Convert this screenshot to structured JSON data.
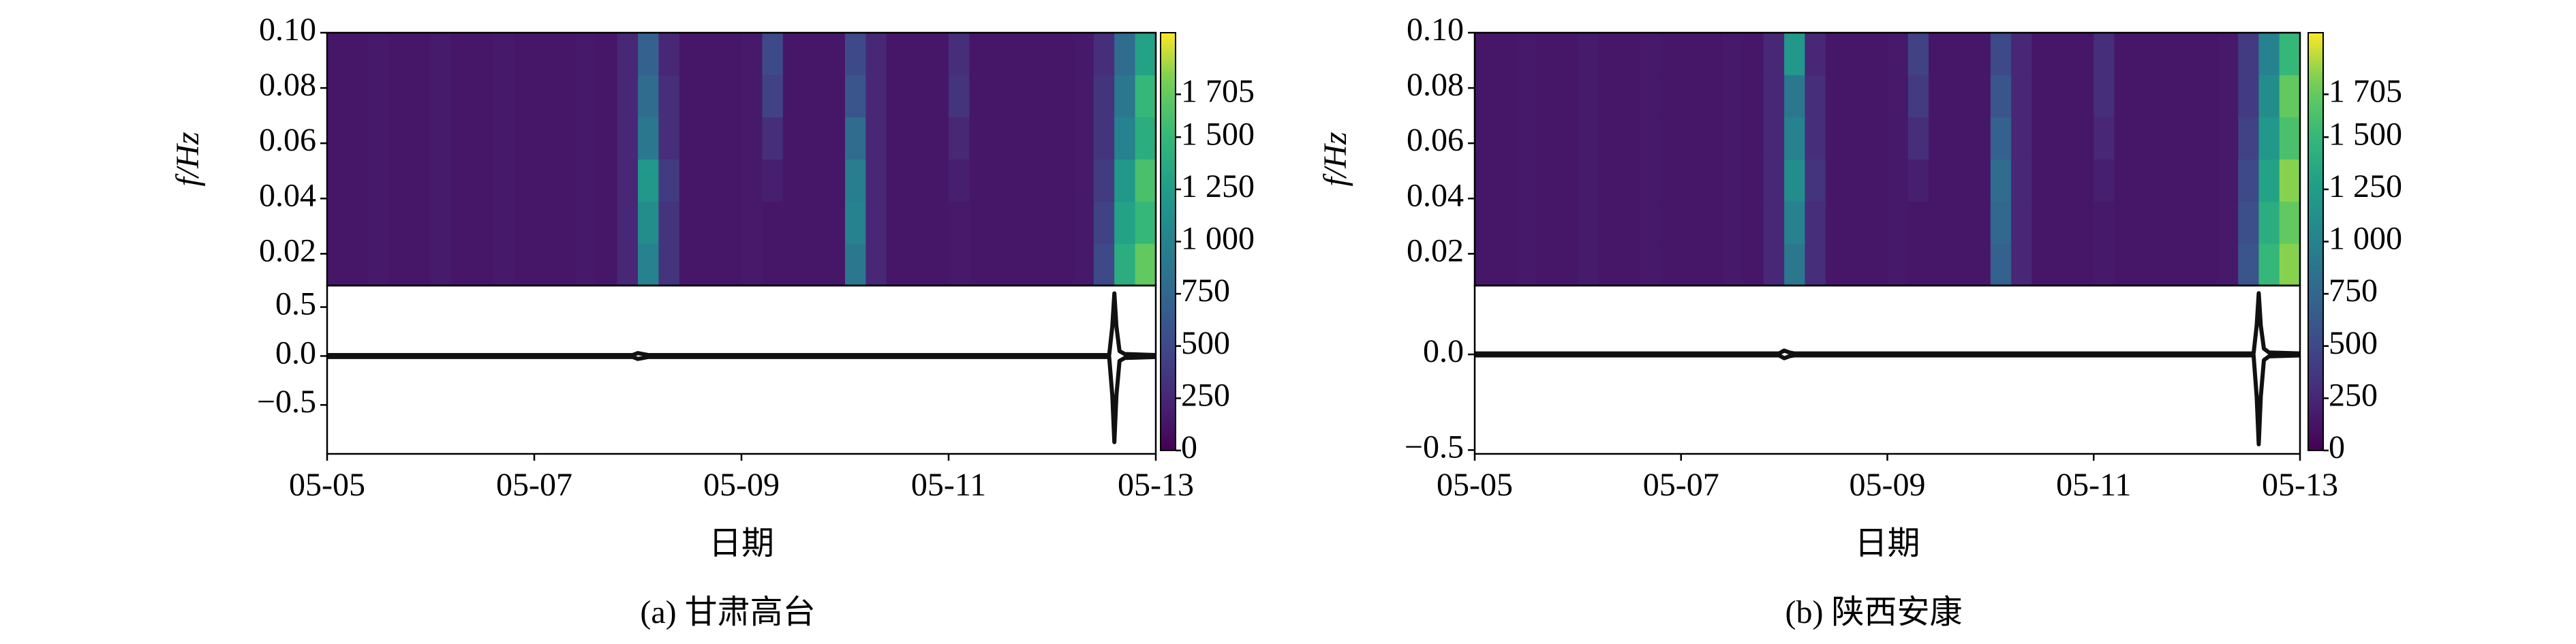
{
  "chart_data": [
    {
      "type": "spectrogram",
      "title": "(a) 甘肃高台",
      "xlabel": "日期",
      "xlim": [
        0,
        8
      ],
      "xticks": [
        {
          "value": 0,
          "label": "05-05"
        },
        {
          "value": 2,
          "label": "05-07"
        },
        {
          "value": 4,
          "label": "05-09"
        },
        {
          "value": 6,
          "label": "05-11"
        },
        {
          "value": 8,
          "label": "05-13"
        }
      ],
      "heatmap": {
        "ylabel": "f/Hz",
        "ylim": [
          0.0085,
          0.1
        ],
        "yticks": [
          0.02,
          0.04,
          0.06,
          0.08,
          {
            "value": 0.1,
            "label": "0.10"
          }
        ],
        "colormap": "viridis",
        "clim": [
          0,
          2000
        ],
        "cticks": [
          0,
          250,
          500,
          750,
          {
            "value": 1000,
            "label": "1 000"
          },
          {
            "value": 1250,
            "label": "1 250"
          },
          {
            "value": 1500,
            "label": "1 500"
          },
          {
            "value": 1705,
            "label": "1 705"
          }
        ],
        "z": [
          [
            150,
            150,
            160,
            150,
            150,
            170,
            150,
            150,
            160,
            150,
            150,
            150,
            160,
            150,
            250,
            1000,
            350,
            150,
            150,
            150,
            160,
            150,
            150,
            150,
            150,
            900,
            250,
            150,
            150,
            150,
            160,
            150,
            150,
            150,
            150,
            150,
            160,
            500,
            1400,
            1700
          ],
          [
            150,
            150,
            160,
            150,
            150,
            170,
            150,
            150,
            160,
            150,
            150,
            150,
            160,
            150,
            250,
            1100,
            350,
            150,
            150,
            150,
            160,
            150,
            150,
            150,
            150,
            1000,
            250,
            150,
            150,
            150,
            160,
            150,
            150,
            150,
            150,
            150,
            160,
            450,
            1300,
            1500
          ],
          [
            150,
            150,
            160,
            150,
            150,
            170,
            150,
            150,
            160,
            150,
            150,
            150,
            160,
            150,
            250,
            1200,
            400,
            150,
            150,
            150,
            160,
            200,
            150,
            150,
            150,
            950,
            250,
            150,
            150,
            150,
            200,
            150,
            150,
            150,
            150,
            150,
            160,
            400,
            1200,
            1600
          ],
          [
            150,
            150,
            160,
            150,
            150,
            170,
            150,
            150,
            160,
            150,
            150,
            150,
            160,
            150,
            250,
            900,
            300,
            150,
            150,
            150,
            160,
            300,
            150,
            150,
            150,
            800,
            250,
            150,
            150,
            150,
            250,
            150,
            150,
            150,
            150,
            150,
            160,
            350,
            1000,
            1400
          ],
          [
            150,
            150,
            160,
            150,
            150,
            170,
            150,
            150,
            160,
            150,
            150,
            150,
            160,
            150,
            250,
            800,
            300,
            150,
            150,
            150,
            160,
            450,
            150,
            150,
            150,
            600,
            250,
            150,
            150,
            150,
            350,
            150,
            150,
            150,
            150,
            150,
            160,
            350,
            900,
            1500
          ],
          [
            150,
            150,
            160,
            150,
            150,
            170,
            150,
            150,
            160,
            150,
            150,
            150,
            160,
            150,
            250,
            700,
            250,
            150,
            150,
            150,
            160,
            500,
            150,
            150,
            150,
            500,
            250,
            150,
            150,
            150,
            300,
            150,
            150,
            150,
            150,
            150,
            160,
            300,
            800,
            1300
          ]
        ]
      },
      "signal": {
        "ylim": [
          -1.0,
          0.72
        ],
        "yticks": [
          {
            "value": -0.5,
            "label": "−0.5"
          },
          {
            "value": 0,
            "label": "0.0"
          },
          0.5
        ],
        "x": [
          0,
          2.95,
          3.0,
          3.05,
          3.1,
          7.55,
          7.58,
          7.6,
          7.62,
          7.65,
          7.7,
          8
        ],
        "series": [
          {
            "color": "#111111",
            "values": [
              0.01,
              0.01,
              0.03,
              0.02,
              0.01,
              0.01,
              0.3,
              0.64,
              0.3,
              0.05,
              0.02,
              0.01
            ]
          },
          {
            "color": "#111111",
            "values": [
              -0.01,
              -0.01,
              -0.03,
              -0.02,
              -0.01,
              -0.01,
              -0.4,
              -0.88,
              -0.4,
              -0.05,
              -0.02,
              -0.01
            ]
          }
        ]
      }
    },
    {
      "type": "spectrogram",
      "title": "(b) 陕西安康",
      "xlabel": "日期",
      "xlim": [
        0,
        8
      ],
      "xticks": [
        {
          "value": 0,
          "label": "05-05"
        },
        {
          "value": 2,
          "label": "05-07"
        },
        {
          "value": 4,
          "label": "05-09"
        },
        {
          "value": 6,
          "label": "05-11"
        },
        {
          "value": 8,
          "label": "05-13"
        }
      ],
      "heatmap": {
        "ylabel": "f/Hz",
        "ylim": [
          0.0085,
          0.1
        ],
        "yticks": [
          0.02,
          0.04,
          0.06,
          0.08,
          {
            "value": 0.1,
            "label": "0.10"
          }
        ],
        "colormap": "viridis",
        "clim": [
          0,
          2000
        ],
        "cticks": [
          0,
          250,
          500,
          750,
          {
            "value": 1000,
            "label": "1 000"
          },
          {
            "value": 1250,
            "label": "1 250"
          },
          {
            "value": 1500,
            "label": "1 500"
          },
          {
            "value": 1705,
            "label": "1 705"
          }
        ],
        "z": [
          [
            150,
            150,
            160,
            150,
            150,
            170,
            150,
            150,
            160,
            150,
            150,
            150,
            160,
            150,
            250,
            900,
            300,
            150,
            150,
            150,
            160,
            150,
            150,
            150,
            150,
            700,
            250,
            150,
            150,
            150,
            160,
            150,
            150,
            150,
            150,
            150,
            160,
            600,
            1500,
            1800
          ],
          [
            150,
            150,
            160,
            150,
            150,
            170,
            150,
            150,
            160,
            150,
            150,
            150,
            160,
            150,
            250,
            1000,
            300,
            150,
            150,
            150,
            160,
            150,
            150,
            150,
            150,
            750,
            250,
            150,
            150,
            150,
            160,
            150,
            150,
            150,
            150,
            150,
            160,
            550,
            1400,
            1700
          ],
          [
            150,
            150,
            160,
            150,
            150,
            170,
            150,
            150,
            160,
            150,
            150,
            150,
            160,
            150,
            250,
            1100,
            350,
            150,
            150,
            150,
            160,
            200,
            150,
            150,
            150,
            800,
            250,
            150,
            150,
            150,
            200,
            150,
            150,
            150,
            150,
            150,
            160,
            500,
            1300,
            1800
          ],
          [
            150,
            150,
            160,
            150,
            150,
            170,
            150,
            150,
            160,
            150,
            150,
            150,
            160,
            150,
            250,
            1000,
            300,
            150,
            150,
            150,
            160,
            300,
            150,
            150,
            150,
            700,
            250,
            150,
            150,
            150,
            250,
            150,
            150,
            150,
            150,
            150,
            160,
            450,
            1200,
            1600
          ],
          [
            150,
            150,
            160,
            150,
            150,
            170,
            150,
            150,
            160,
            150,
            150,
            150,
            160,
            150,
            250,
            900,
            300,
            150,
            150,
            150,
            160,
            400,
            150,
            150,
            150,
            600,
            250,
            150,
            150,
            150,
            300,
            150,
            150,
            150,
            150,
            150,
            160,
            400,
            1100,
            1700
          ],
          [
            150,
            150,
            160,
            150,
            150,
            170,
            150,
            150,
            160,
            150,
            150,
            150,
            160,
            150,
            250,
            1200,
            250,
            150,
            150,
            150,
            160,
            450,
            150,
            150,
            150,
            500,
            250,
            150,
            150,
            150,
            300,
            150,
            150,
            150,
            150,
            150,
            160,
            400,
            1000,
            1500
          ]
        ]
      },
      "signal": {
        "ylim": [
          -0.52,
          0.36
        ],
        "yticks": [
          {
            "value": -0.5,
            "label": "−0.5"
          },
          {
            "value": 0,
            "label": "0.0"
          }
        ],
        "x": [
          0,
          2.95,
          3.0,
          3.05,
          3.1,
          7.55,
          7.58,
          7.6,
          7.62,
          7.65,
          7.7,
          8
        ],
        "series": [
          {
            "color": "#111111",
            "values": [
              0.005,
              0.005,
              0.02,
              0.01,
              0.005,
              0.005,
              0.15,
              0.32,
              0.15,
              0.03,
              0.01,
              0.005
            ]
          },
          {
            "color": "#111111",
            "values": [
              -0.005,
              -0.005,
              -0.02,
              -0.01,
              -0.005,
              -0.005,
              -0.22,
              -0.47,
              -0.22,
              -0.03,
              -0.01,
              -0.005
            ]
          }
        ]
      }
    }
  ]
}
